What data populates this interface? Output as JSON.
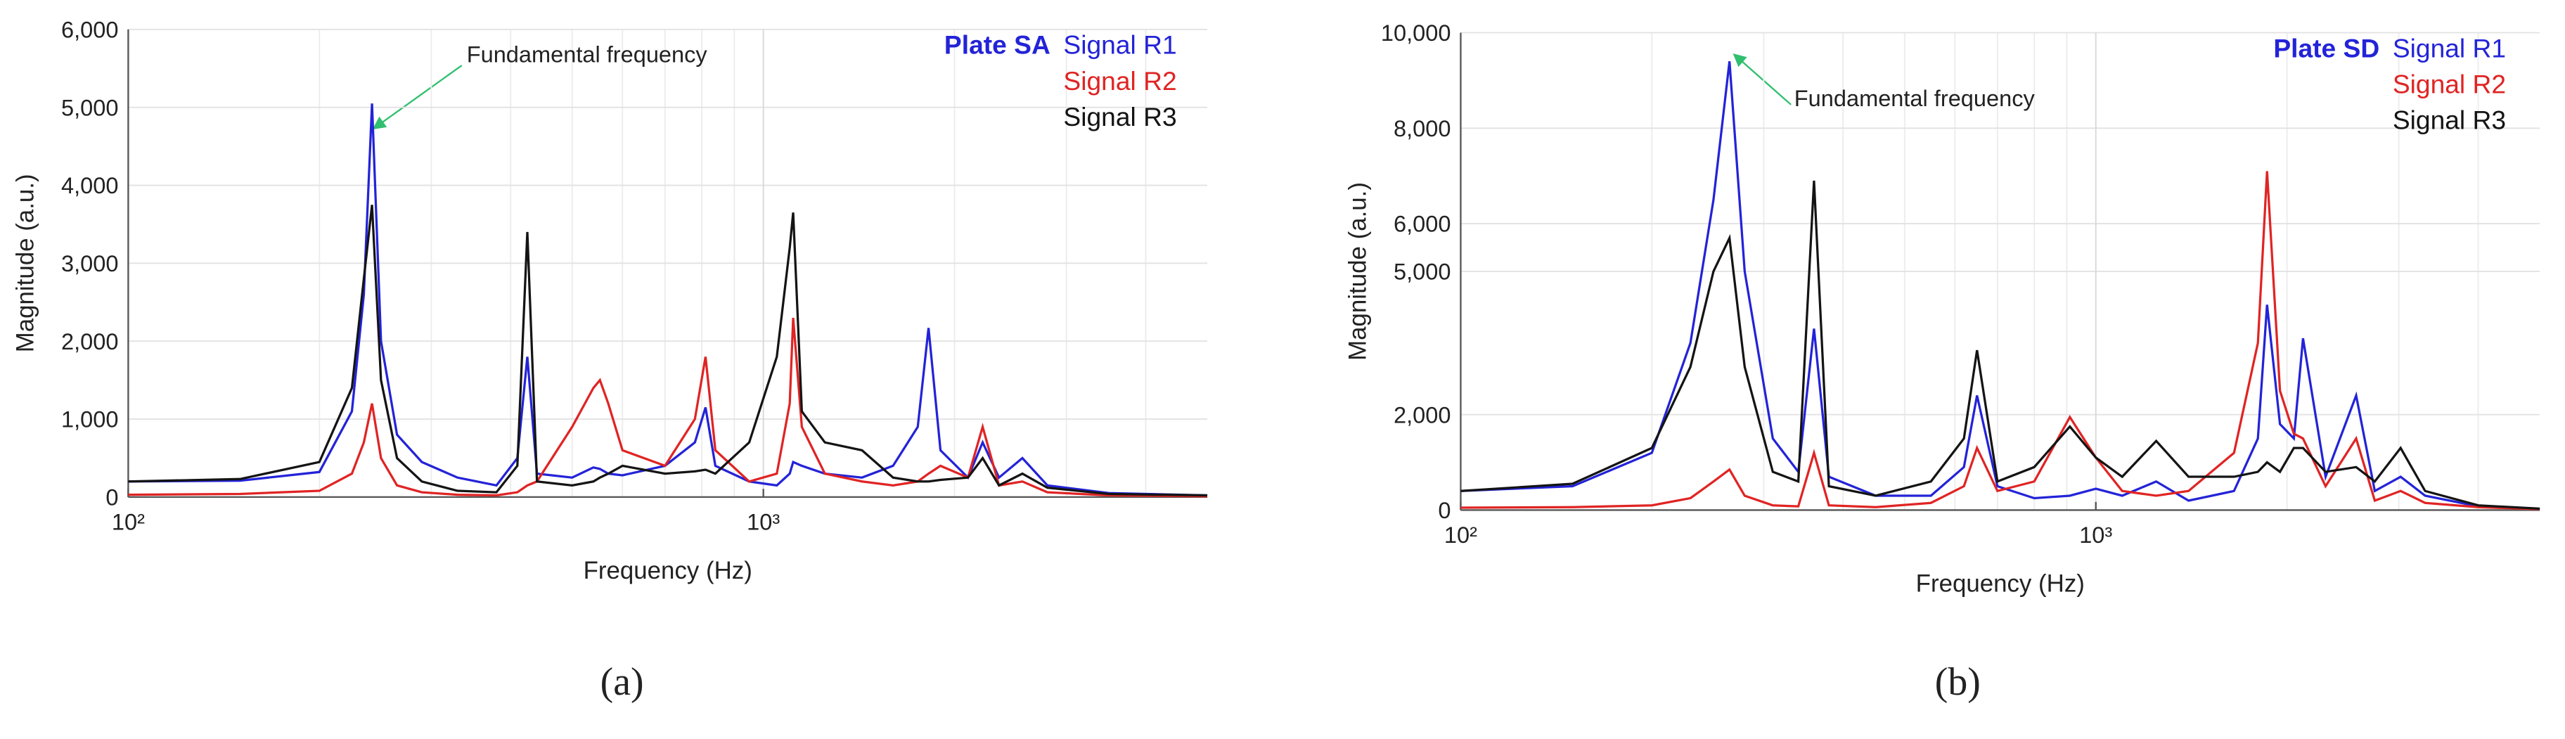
{
  "chart_data": [
    {
      "type": "line",
      "legend_title": "Plate SA",
      "annotation": "Fundamental frequency",
      "xlabel": "Frequency (Hz)",
      "ylabel": "Magnitude (a.u.)",
      "panel_label": "(a)",
      "log_x": true,
      "grid": true,
      "legend": "upper right",
      "xlim": [
        100,
        5000
      ],
      "xticks": [
        {
          "value": 100,
          "label": "10²"
        },
        {
          "value": 1000,
          "label": "10³"
        }
      ],
      "ylim": [
        0,
        6000
      ],
      "yticks": [
        0,
        {
          "value": 1000,
          "label": "1,000"
        },
        {
          "value": 2000,
          "label": "2,000"
        },
        {
          "value": 3000,
          "label": "3,000"
        },
        {
          "value": 4000,
          "label": "4,000"
        },
        {
          "value": 5000,
          "label": "5,000"
        },
        {
          "value": 6000,
          "label": "6,000"
        }
      ],
      "x": [
        100,
        150,
        200,
        225,
        235,
        242,
        250,
        265,
        290,
        330,
        380,
        410,
        425,
        440,
        500,
        540,
        553,
        570,
        600,
        700,
        780,
        811,
        840,
        950,
        1050,
        1100,
        1114,
        1150,
        1250,
        1430,
        1600,
        1750,
        1820,
        1900,
        2100,
        2215,
        2350,
        2557,
        2800,
        3500,
        5000
      ],
      "series": [
        {
          "name": "Signal R1",
          "color": "#2323d8",
          "values": [
            200,
            210,
            320,
            1100,
            2600,
            5050,
            2000,
            800,
            450,
            250,
            150,
            500,
            1800,
            300,
            250,
            380,
            360,
            300,
            280,
            400,
            700,
            1150,
            400,
            200,
            150,
            300,
            450,
            400,
            300,
            250,
            400,
            900,
            2170,
            600,
            250,
            700,
            250,
            500,
            150,
            50,
            20
          ]
        },
        {
          "name": "Signal R2",
          "color": "#e02424",
          "values": [
            30,
            40,
            80,
            300,
            700,
            1200,
            500,
            150,
            60,
            30,
            20,
            60,
            150,
            200,
            900,
            1400,
            1500,
            1200,
            600,
            400,
            1000,
            1800,
            600,
            200,
            300,
            1200,
            2300,
            900,
            300,
            200,
            150,
            200,
            300,
            400,
            250,
            900,
            150,
            200,
            60,
            20,
            10
          ]
        },
        {
          "name": "Signal R3",
          "color": "#141414",
          "values": [
            200,
            230,
            450,
            1400,
            2800,
            3750,
            1500,
            500,
            200,
            80,
            60,
            400,
            3400,
            200,
            150,
            200,
            250,
            300,
            400,
            300,
            330,
            350,
            300,
            700,
            1800,
            3200,
            3650,
            1100,
            700,
            600,
            250,
            200,
            200,
            220,
            250,
            500,
            150,
            300,
            120,
            40,
            20
          ]
        }
      ]
    },
    {
      "type": "line",
      "legend_title": "Plate SD",
      "annotation": "Fundamental frequency",
      "xlabel": "Frequency (Hz)",
      "ylabel": "Magnitude (a.u.)",
      "panel_label": "(b)",
      "log_x": true,
      "grid": true,
      "legend": "upper right",
      "xlim": [
        100,
        5000
      ],
      "xticks": [
        {
          "value": 100,
          "label": "10²"
        },
        {
          "value": 1000,
          "label": "10³"
        }
      ],
      "ylim": [
        0,
        10000
      ],
      "yticks": [
        0,
        {
          "value": 2000,
          "label": "2,000"
        },
        {
          "value": 5000,
          "label": "5,000"
        },
        {
          "value": 6000,
          "label": "6,000"
        },
        {
          "value": 8000,
          "label": "8,000"
        },
        {
          "value": 10000,
          "label": "10,000"
        }
      ],
      "x": [
        100,
        150,
        200,
        230,
        250,
        265,
        280,
        310,
        340,
        360,
        380,
        450,
        550,
        620,
        650,
        700,
        800,
        910,
        1000,
        1100,
        1245,
        1400,
        1650,
        1800,
        1860,
        1950,
        2050,
        2120,
        2300,
        2570,
        2750,
        3020,
        3300,
        4000,
        5000
      ],
      "series": [
        {
          "name": "Signal R1",
          "color": "#2323d8",
          "values": [
            400,
            500,
            1200,
            3500,
            6500,
            9400,
            5000,
            1500,
            800,
            3800,
            700,
            300,
            300,
            900,
            2400,
            500,
            250,
            300,
            450,
            300,
            600,
            200,
            400,
            1500,
            4300,
            1800,
            1500,
            3600,
            700,
            2400,
            400,
            700,
            300,
            80,
            20
          ]
        },
        {
          "name": "Signal R2",
          "color": "#e02424",
          "values": [
            50,
            60,
            100,
            250,
            600,
            850,
            300,
            100,
            80,
            1200,
            100,
            60,
            150,
            500,
            1300,
            400,
            600,
            1950,
            1100,
            400,
            300,
            400,
            1200,
            3500,
            7100,
            2500,
            1600,
            1500,
            500,
            1500,
            200,
            400,
            150,
            60,
            20
          ]
        },
        {
          "name": "Signal R3",
          "color": "#141414",
          "values": [
            400,
            550,
            1300,
            3000,
            5000,
            5700,
            3000,
            800,
            600,
            6900,
            500,
            300,
            600,
            1500,
            3350,
            600,
            900,
            1750,
            1100,
            700,
            1450,
            700,
            700,
            800,
            1000,
            800,
            1300,
            1300,
            800,
            900,
            600,
            1300,
            400,
            100,
            30
          ]
        }
      ]
    }
  ]
}
